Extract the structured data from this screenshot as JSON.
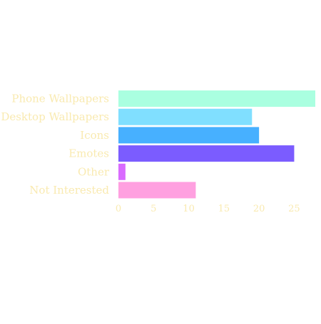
{
  "chart_data": {
    "type": "bar",
    "orientation": "horizontal",
    "title": "",
    "xlabel": "",
    "ylabel": "",
    "categories": [
      "Phone Wallpapers",
      "Desktop Wallpapers",
      "Icons",
      "Emotes",
      "Other",
      "Not Interested"
    ],
    "values": [
      28,
      19,
      20,
      25,
      1,
      11
    ],
    "colors": [
      "#aaffe0",
      "#80dfff",
      "#47b0ff",
      "#7b5cff",
      "#d96bff",
      "#ffa0e0"
    ],
    "xlim": [
      0,
      28
    ],
    "xticks": [
      0,
      5,
      10,
      15,
      20,
      25
    ],
    "grid": false,
    "legend": "none",
    "label_color": "#f9eab0"
  }
}
